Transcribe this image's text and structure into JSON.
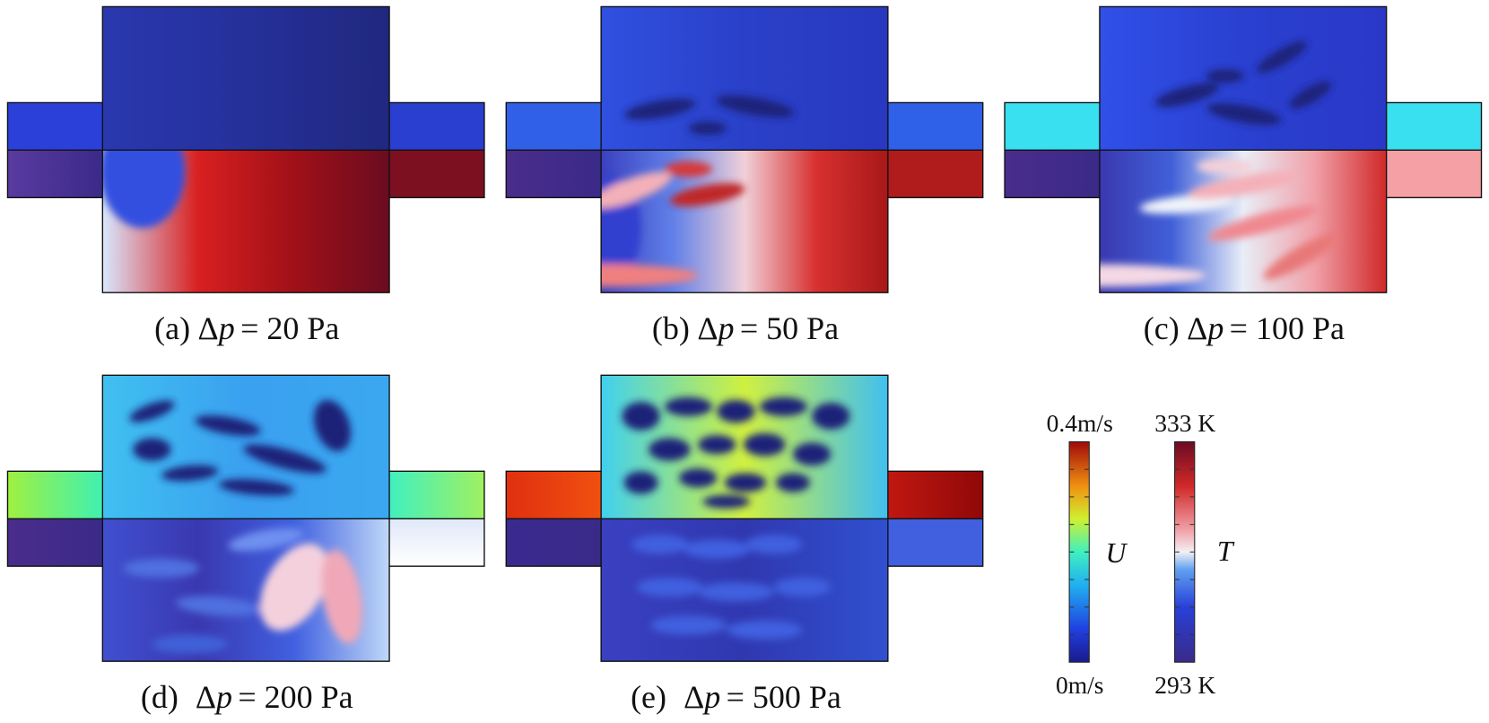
{
  "panels": [
    {
      "label": "(a)",
      "delta": "Δ",
      "variable": "p",
      "value": "= 20 Pa"
    },
    {
      "label": "(b)",
      "delta": "Δ",
      "variable": "p",
      "value": "= 50 Pa"
    },
    {
      "label": "(c)",
      "delta": "Δ",
      "variable": "p",
      "value": "= 100 Pa"
    },
    {
      "label": "(d)",
      "delta": "Δ",
      "variable": "p",
      "value": "= 200 Pa"
    },
    {
      "label": "(e)",
      "delta": "Δ",
      "variable": "p",
      "value": "= 500 Pa"
    }
  ],
  "colorbars": [
    {
      "max": "0.4m/s",
      "min": "0m/s",
      "symbol": "U"
    },
    {
      "max": "333 K",
      "min": "293 K",
      "symbol": "T"
    }
  ]
}
